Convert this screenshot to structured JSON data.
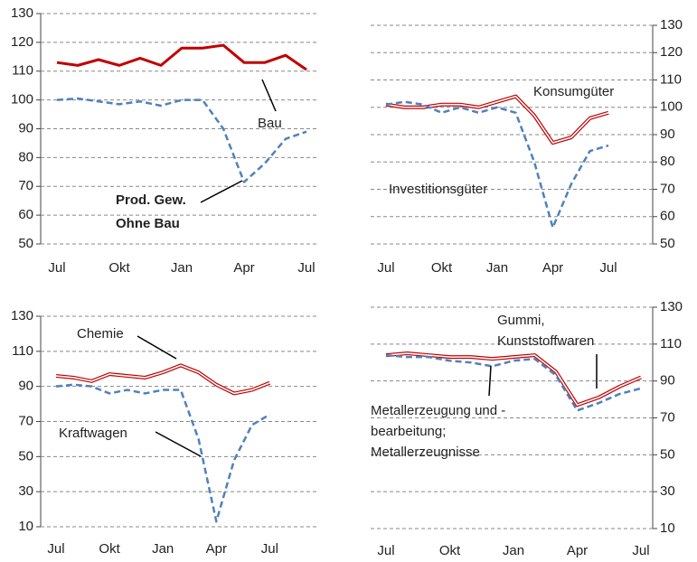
{
  "chart_data": [
    {
      "type": "line",
      "axis_side": "left",
      "categories": [
        "Jul",
        null,
        null,
        "Okt",
        null,
        null,
        "Jan",
        null,
        null,
        "Apr",
        null,
        null,
        "Jul"
      ],
      "ylim": [
        50,
        130
      ],
      "yticks": [
        50,
        60,
        70,
        80,
        90,
        100,
        110,
        120,
        130
      ],
      "grid": true,
      "series": [
        {
          "color": "#c00000",
          "line_style": "solid",
          "values": [
            113,
            112,
            114,
            112,
            114.5,
            112,
            118,
            118,
            119,
            113,
            113,
            115.5,
            110.5
          ]
        },
        {
          "color": "#4f81bd",
          "line_style": "dashed",
          "values": [
            100,
            100.5,
            99.5,
            98.5,
            99.5,
            98,
            100,
            100,
            90,
            71.5,
            78,
            86.5,
            89
          ]
        }
      ],
      "annotations": [
        {
          "lines": [
            "Bau"
          ]
        },
        {
          "lines": [
            "Prod. Gew.",
            "Ohne Bau"
          ]
        }
      ]
    },
    {
      "type": "line",
      "axis_side": "right",
      "categories": [
        "Jul",
        null,
        null,
        "Okt",
        null,
        null,
        "Jan",
        null,
        null,
        "Apr",
        null,
        null,
        "Jul"
      ],
      "ylim": [
        50,
        130
      ],
      "yticks": [
        50,
        60,
        70,
        80,
        90,
        100,
        110,
        120,
        130
      ],
      "grid": true,
      "series": [
        {
          "color": "#c00000",
          "line_style": "double",
          "values": [
            101,
            100,
            100,
            101,
            101,
            100,
            102,
            104,
            97,
            87,
            89,
            96,
            98
          ]
        },
        {
          "color": "#4f81bd",
          "line_style": "dashed",
          "values": [
            101,
            102,
            101,
            98,
            100,
            98,
            100,
            98,
            80,
            56,
            72,
            84,
            86
          ]
        }
      ],
      "annotations": [
        {
          "lines": [
            "Konsumgüter"
          ]
        },
        {
          "lines": [
            "Investitionsgüter"
          ]
        }
      ]
    },
    {
      "type": "line",
      "axis_side": "left",
      "categories": [
        "Jul",
        null,
        null,
        "Okt",
        null,
        null,
        "Jan",
        null,
        null,
        "Apr",
        null,
        null,
        "Jul"
      ],
      "ylim": [
        10,
        130
      ],
      "yticks": [
        10,
        30,
        50,
        70,
        90,
        110,
        130
      ],
      "grid": true,
      "series": [
        {
          "color": "#c00000",
          "line_style": "double",
          "values": [
            96,
            95,
            93,
            97,
            96,
            95,
            98,
            102,
            98,
            91,
            86,
            88,
            92
          ]
        },
        {
          "color": "#4f81bd",
          "line_style": "dashed",
          "values": [
            90,
            91,
            90,
            86,
            88,
            86,
            88,
            88,
            60,
            13,
            48,
            68,
            74
          ]
        }
      ],
      "annotations": [
        {
          "lines": [
            "Chemie"
          ]
        },
        {
          "lines": [
            "Kraftwagen"
          ]
        }
      ]
    },
    {
      "type": "line",
      "axis_side": "right",
      "categories": [
        "Jul",
        null,
        null,
        "Okt",
        null,
        null,
        "Jan",
        null,
        null,
        "Apr",
        null,
        null,
        "Jul"
      ],
      "ylim": [
        10,
        130
      ],
      "yticks": [
        10,
        30,
        50,
        70,
        90,
        110,
        130
      ],
      "grid": true,
      "series": [
        {
          "color": "#c00000",
          "line_style": "double",
          "values": [
            104,
            105,
            104,
            103,
            103,
            102,
            103,
            104,
            95,
            77,
            81,
            87,
            92
          ]
        },
        {
          "color": "#4f81bd",
          "line_style": "dashed",
          "values": [
            104,
            103,
            103,
            101,
            100,
            98,
            101,
            102,
            93,
            74,
            78,
            83,
            86
          ]
        }
      ],
      "annotations": [
        {
          "lines": [
            "Gummi,",
            "Kunststoffwaren"
          ]
        },
        {
          "lines": [
            "Metallerzeugung und -",
            "bearbeitung;",
            "Metallerzeugnisse"
          ]
        }
      ]
    }
  ]
}
